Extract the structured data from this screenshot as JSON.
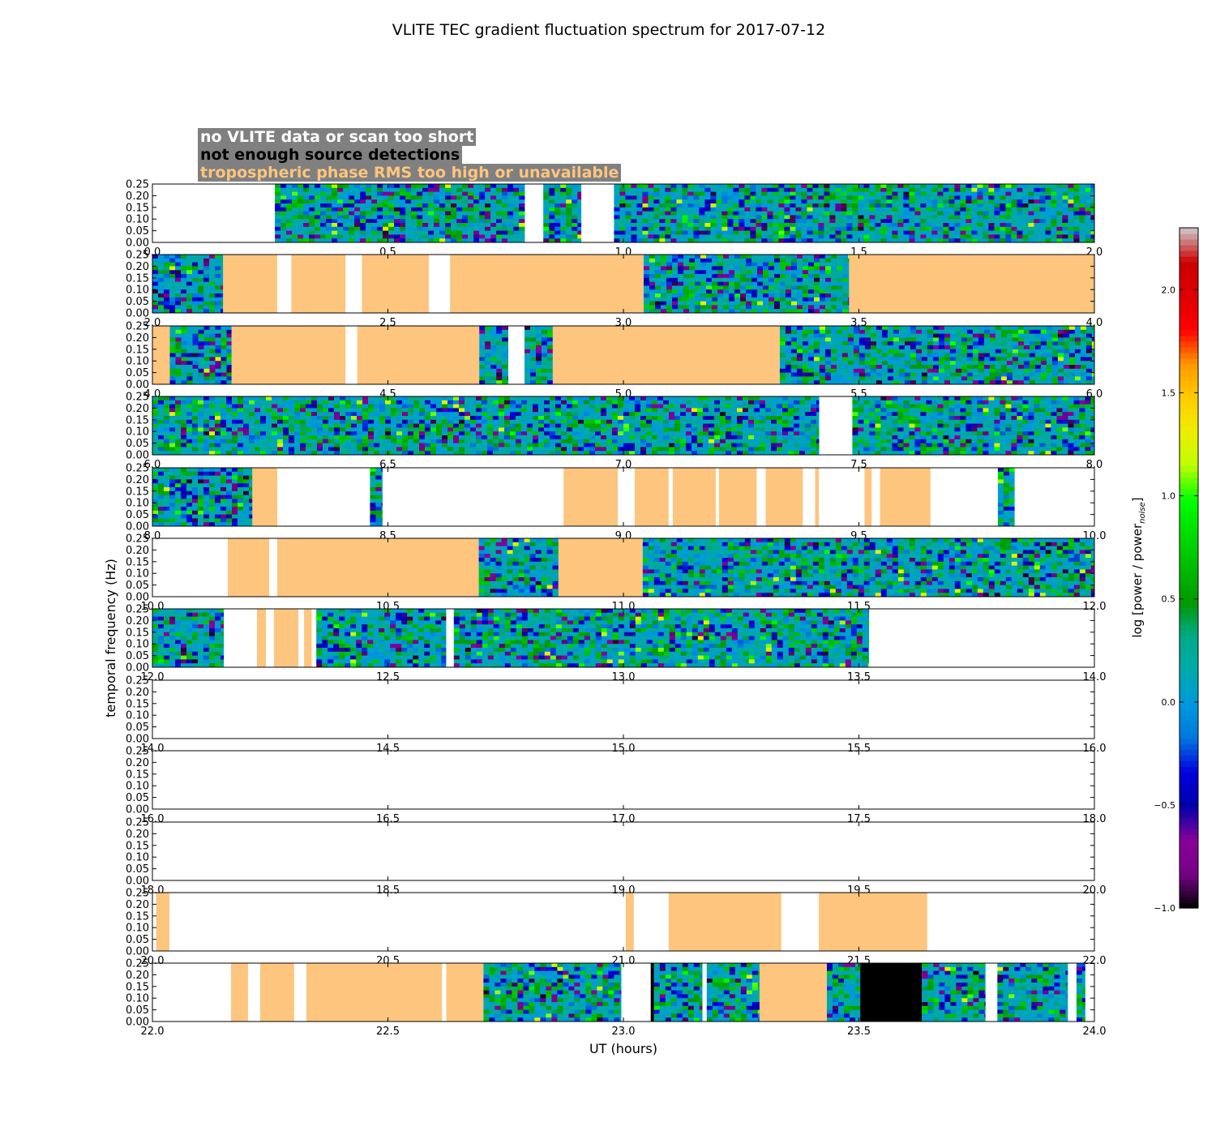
{
  "chart_data": {
    "type": "heatmap",
    "title": "VLITE TEC gradient fluctuation spectrum for 2017-07-12",
    "xlabel": "UT (hours)",
    "ylabel": "temporal frequency (Hz)",
    "ylim": [
      0,
      0.25
    ],
    "yticks": [
      "0.00",
      "0.05",
      "0.10",
      "0.15",
      "0.20",
      "0.25"
    ],
    "colorbar": {
      "label_base": "log [power / power",
      "label_sub": "noise",
      "label_end": "]",
      "range": [
        -1.0,
        2.3
      ],
      "ticks": [
        -1.0,
        -0.5,
        0.0,
        0.5,
        1.0,
        1.5,
        2.0
      ],
      "tick_labels": [
        "−1.0",
        "−0.5",
        "0.0",
        "0.5",
        "1.0",
        "1.5",
        "2.0"
      ],
      "colormap": "nipy_spectral"
    },
    "legend": [
      {
        "text": "no VLITE data or scan too short",
        "color": "#ffffff"
      },
      {
        "text": "not enough source detections",
        "color": "#000000"
      },
      {
        "text": "tropospheric phase RMS too high or unavailable",
        "color": "#fdc57e"
      }
    ],
    "category_colors": {
      "spectrum": "spectrum",
      "trop": "#fdc57e",
      "nodet": "#000000",
      "none": "#ffffff"
    },
    "panels": [
      {
        "xlim": [
          0,
          2
        ],
        "xticks": [
          "0.0",
          "0.5",
          "1.0",
          "1.5",
          "2.0"
        ],
        "segments": [
          [
            0.26,
            0.79,
            "spectrum"
          ],
          [
            0.83,
            0.91,
            "spectrum"
          ],
          [
            0.98,
            2.0,
            "spectrum"
          ]
        ]
      },
      {
        "xlim": [
          2,
          4
        ],
        "xticks": [
          "2.0",
          "2.5",
          "3.0",
          "3.5",
          "4.0"
        ],
        "segments": [
          [
            2.0,
            2.15,
            "spectrum"
          ],
          [
            2.15,
            2.265,
            "trop"
          ],
          [
            2.295,
            2.41,
            "trop"
          ],
          [
            2.445,
            2.587,
            "trop"
          ],
          [
            2.632,
            3.043,
            "trop"
          ],
          [
            3.043,
            3.479,
            "spectrum"
          ],
          [
            3.479,
            4.0,
            "trop"
          ]
        ]
      },
      {
        "xlim": [
          4,
          6
        ],
        "xticks": [
          "4.0",
          "4.5",
          "5.0",
          "5.5",
          "6.0"
        ],
        "segments": [
          [
            4.0,
            4.037,
            "trop"
          ],
          [
            4.037,
            4.168,
            "spectrum"
          ],
          [
            4.168,
            4.41,
            "trop"
          ],
          [
            4.435,
            4.694,
            "trop"
          ],
          [
            4.694,
            4.755,
            "spectrum"
          ],
          [
            4.79,
            4.85,
            "spectrum"
          ],
          [
            4.85,
            5.332,
            "trop"
          ],
          [
            5.332,
            6.0,
            "spectrum"
          ]
        ]
      },
      {
        "xlim": [
          6,
          8
        ],
        "xticks": [
          "6.0",
          "6.5",
          "7.0",
          "7.5",
          "8.0"
        ],
        "segments": [
          [
            6.0,
            7.415,
            "spectrum"
          ],
          [
            7.486,
            8.0,
            "spectrum"
          ]
        ]
      },
      {
        "xlim": [
          8,
          10
        ],
        "xticks": [
          "8.0",
          "8.5",
          "9.0",
          "9.5",
          "10.0"
        ],
        "segments": [
          [
            8.0,
            8.212,
            "spectrum"
          ],
          [
            8.212,
            8.265,
            "trop"
          ],
          [
            8.462,
            8.488,
            "spectrum"
          ],
          [
            8.873,
            8.988,
            "trop"
          ],
          [
            9.024,
            9.096,
            "trop"
          ],
          [
            9.105,
            9.196,
            "trop"
          ],
          [
            9.203,
            9.283,
            "trop"
          ],
          [
            9.302,
            9.381,
            "trop"
          ],
          [
            9.407,
            9.415,
            "trop"
          ],
          [
            9.512,
            9.527,
            "trop"
          ],
          [
            9.545,
            9.652,
            "trop"
          ],
          [
            9.795,
            9.83,
            "spectrum"
          ]
        ]
      },
      {
        "xlim": [
          10,
          12
        ],
        "xticks": [
          "10.0",
          "10.5",
          "11.0",
          "11.5",
          "12.0"
        ],
        "segments": [
          [
            10.16,
            10.248,
            "trop"
          ],
          [
            10.265,
            10.693,
            "trop"
          ],
          [
            10.693,
            10.862,
            "spectrum"
          ],
          [
            10.862,
            11.041,
            "trop"
          ],
          [
            11.041,
            12.0,
            "spectrum"
          ]
        ]
      },
      {
        "xlim": [
          12,
          14
        ],
        "xticks": [
          "12.0",
          "12.5",
          "13.0",
          "13.5",
          "14.0"
        ],
        "segments": [
          [
            12.0,
            12.151,
            "spectrum"
          ],
          [
            12.222,
            12.241,
            "trop"
          ],
          [
            12.258,
            12.31,
            "trop"
          ],
          [
            12.322,
            12.338,
            "trop"
          ],
          [
            12.348,
            12.623,
            "spectrum"
          ],
          [
            12.64,
            13.521,
            "spectrum"
          ]
        ]
      },
      {
        "xlim": [
          14,
          16
        ],
        "xticks": [
          "14.0",
          "14.5",
          "15.0",
          "15.5",
          "16.0"
        ],
        "segments": []
      },
      {
        "xlim": [
          16,
          18
        ],
        "xticks": [
          "16.0",
          "16.5",
          "17.0",
          "17.5",
          "18.0"
        ],
        "segments": []
      },
      {
        "xlim": [
          18,
          20
        ],
        "xticks": [
          "18.0",
          "18.5",
          "19.0",
          "19.5",
          "20.0"
        ],
        "segments": []
      },
      {
        "xlim": [
          20,
          22
        ],
        "xticks": [
          "20.0",
          "20.5",
          "21.0",
          "21.5",
          "22.0"
        ],
        "segments": [
          [
            20.008,
            20.036,
            "trop"
          ],
          [
            21.005,
            21.022,
            "trop"
          ],
          [
            21.096,
            21.335,
            "trop"
          ],
          [
            21.415,
            21.645,
            "trop"
          ]
        ]
      },
      {
        "xlim": [
          22,
          24
        ],
        "xticks": [
          "22.0",
          "22.5",
          "23.0",
          "23.5",
          "24.0"
        ],
        "segments": [
          [
            22.167,
            22.203,
            "trop"
          ],
          [
            22.229,
            22.301,
            "trop"
          ],
          [
            22.327,
            22.615,
            "trop"
          ],
          [
            22.624,
            22.703,
            "trop"
          ],
          [
            22.703,
            22.995,
            "spectrum"
          ],
          [
            23.058,
            23.065,
            "nodet"
          ],
          [
            23.065,
            23.167,
            "spectrum"
          ],
          [
            23.177,
            23.289,
            "spectrum"
          ],
          [
            23.289,
            23.432,
            "trop"
          ],
          [
            23.432,
            23.503,
            "spectrum"
          ],
          [
            23.503,
            23.634,
            "nodet"
          ],
          [
            23.634,
            23.768,
            "spectrum"
          ],
          [
            23.794,
            23.943,
            "spectrum"
          ],
          [
            23.962,
            23.98,
            "spectrum"
          ]
        ]
      }
    ]
  }
}
